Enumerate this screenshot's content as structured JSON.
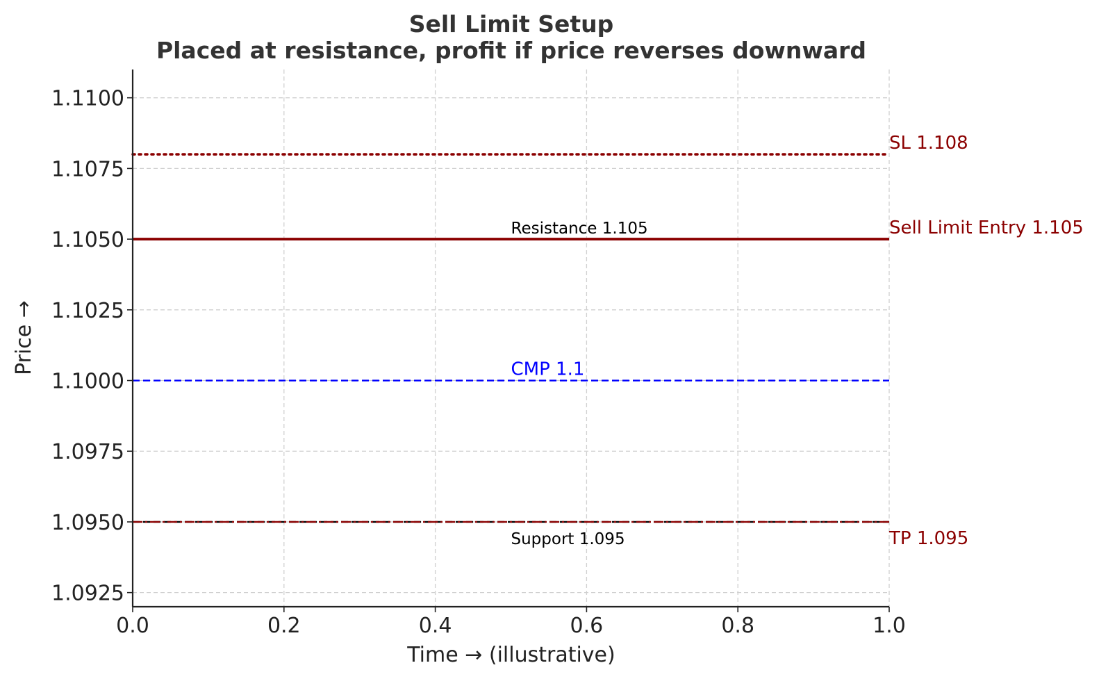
{
  "chart_data": {
    "type": "line",
    "title": "Sell Limit Setup",
    "subtitle": "Placed at resistance, profit if price reverses downward",
    "xlabel": "Time → (illustrative)",
    "ylabel": "Price →",
    "xlim": [
      0.0,
      1.0
    ],
    "ylim": [
      1.092,
      1.111
    ],
    "x_ticks": [
      {
        "value": 0.0,
        "label": "0.0"
      },
      {
        "value": 0.2,
        "label": "0.2"
      },
      {
        "value": 0.4,
        "label": "0.4"
      },
      {
        "value": 0.6,
        "label": "0.6"
      },
      {
        "value": 0.8,
        "label": "0.8"
      },
      {
        "value": 1.0,
        "label": "1.0"
      }
    ],
    "y_ticks": [
      {
        "value": 1.0925,
        "label": "1.0925"
      },
      {
        "value": 1.095,
        "label": "1.0950"
      },
      {
        "value": 1.0975,
        "label": "1.0975"
      },
      {
        "value": 1.1,
        "label": "1.1000"
      },
      {
        "value": 1.1025,
        "label": "1.1025"
      },
      {
        "value": 1.105,
        "label": "1.1050"
      },
      {
        "value": 1.1075,
        "label": "1.1075"
      },
      {
        "value": 1.11,
        "label": "1.1100"
      }
    ],
    "grid": true,
    "lines": [
      {
        "id": "cmp-line",
        "y": 1.1,
        "color": "#0000ff",
        "style": "dashed"
      },
      {
        "id": "resistance-line",
        "y": 1.105,
        "color": "#8b0000",
        "style": "solid"
      },
      {
        "id": "support-line",
        "y": 1.095,
        "color": "#000000",
        "style": "dashed"
      },
      {
        "id": "entry-line",
        "y": 1.105,
        "color": "#8b0000",
        "style": "solid"
      },
      {
        "id": "sl-line",
        "y": 1.108,
        "color": "#8b0000",
        "style": "dotted"
      },
      {
        "id": "tp-line",
        "y": 1.095,
        "color": "#8b0000",
        "style": "dashdot"
      }
    ],
    "annotations": [
      {
        "id": "cmp-label",
        "text": "CMP 1.1",
        "x": 0.5,
        "y": 1.1,
        "color": "#0000ff",
        "size": "mid",
        "position": "above"
      },
      {
        "id": "resistance-label",
        "text": "Resistance 1.105",
        "x": 0.5,
        "y": 1.105,
        "color": "#000000",
        "size": "small",
        "position": "above"
      },
      {
        "id": "support-label",
        "text": "Support 1.095",
        "x": 0.5,
        "y": 1.095,
        "color": "#000000",
        "size": "small",
        "position": "below"
      },
      {
        "id": "sl-label",
        "text": "SL 1.108",
        "x": 1.0,
        "y": 1.108,
        "color": "#8b0000",
        "size": "mid",
        "position": "above"
      },
      {
        "id": "entry-label",
        "text": "Sell Limit Entry 1.105",
        "x": 1.0,
        "y": 1.105,
        "color": "#8b0000",
        "size": "mid",
        "position": "above"
      },
      {
        "id": "tp-label",
        "text": "TP 1.095",
        "x": 1.0,
        "y": 1.095,
        "color": "#8b0000",
        "size": "mid",
        "position": "below"
      }
    ]
  }
}
